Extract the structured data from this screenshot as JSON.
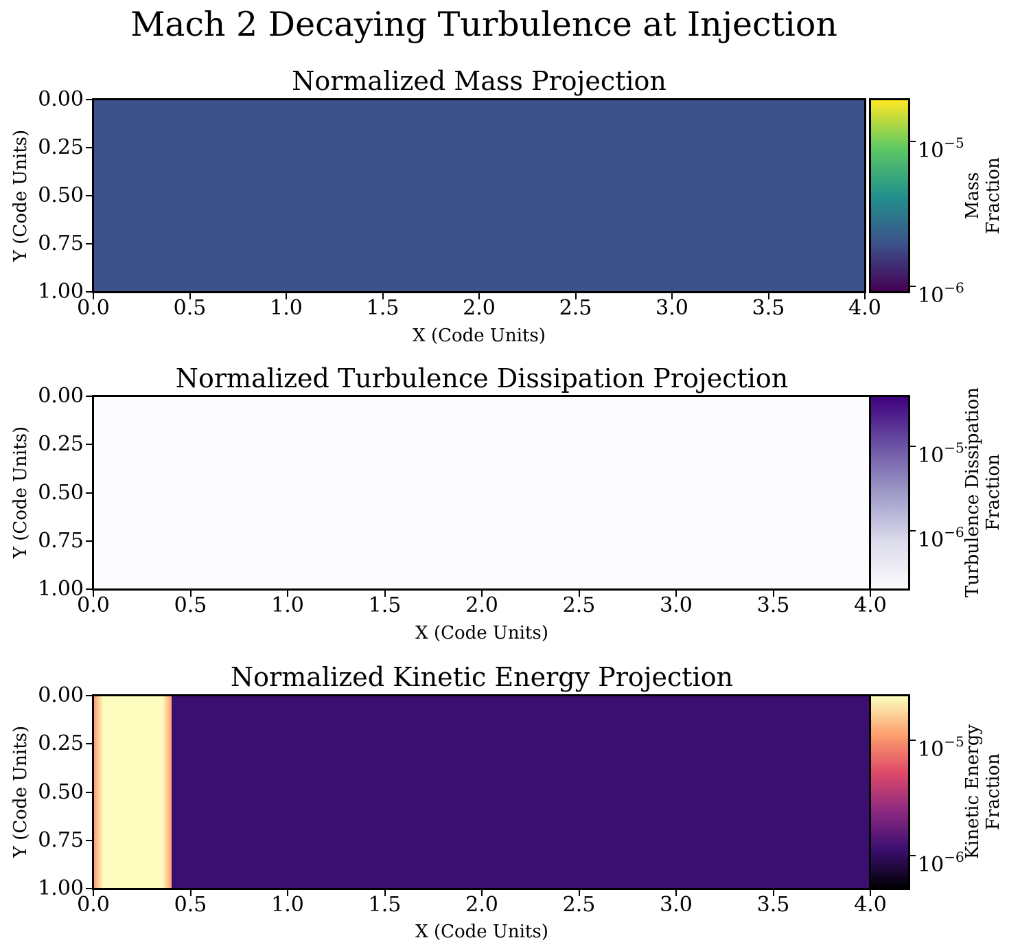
{
  "suptitle": "Mach 2 Decaying Turbulence at Injection",
  "chart_data": [
    {
      "type": "heatmap",
      "title": "Normalized Mass Projection",
      "xlabel": "X (Code Units)",
      "ylabel": "Y (Code Units)",
      "xlim": [
        0.0,
        4.0
      ],
      "ylim": [
        1.0,
        0.0
      ],
      "xticks": [
        "0.0",
        "0.5",
        "1.0",
        "1.5",
        "2.0",
        "2.5",
        "3.0",
        "3.5",
        "4.0"
      ],
      "yticks": [
        "0.00",
        "0.25",
        "0.50",
        "0.75",
        "1.00"
      ],
      "colormap": "viridis",
      "colors": [
        "#440154",
        "#3b528b",
        "#21918c",
        "#5ec962",
        "#fde725"
      ],
      "colorbar": {
        "label": [
          "Mass",
          "Fraction"
        ],
        "scale": "log",
        "range": [
          9e-07,
          2e-05
        ],
        "ticks": [
          {
            "base": "10",
            "exp": "−5",
            "value": 1e-05
          },
          {
            "base": "10",
            "exp": "−6",
            "value": 1e-06
          }
        ]
      }
    },
    {
      "type": "heatmap",
      "title": "Normalized Turbulence Dissipation Projection",
      "xlabel": "X (Code Units)",
      "ylabel": "Y (Code Units)",
      "xlim": [
        0.0,
        4.0
      ],
      "ylim": [
        1.0,
        0.0
      ],
      "xticks": [
        "0.0",
        "0.5",
        "1.0",
        "1.5",
        "2.0",
        "2.5",
        "3.0",
        "3.5",
        "4.0"
      ],
      "yticks": [
        "0.00",
        "0.25",
        "0.50",
        "0.75",
        "1.00"
      ],
      "colormap": "Purples",
      "colors": [
        "#fcfbfd",
        "#dadaeb",
        "#9e9ac8",
        "#6a51a3",
        "#3f007d"
      ],
      "colorbar": {
        "label": [
          "Turbulence Dissipation",
          "Fraction"
        ],
        "scale": "log",
        "range": [
          2e-07,
          4e-05
        ],
        "ticks": [
          {
            "base": "10",
            "exp": "−5",
            "value": 1e-05
          },
          {
            "base": "10",
            "exp": "−6",
            "value": 1e-06
          }
        ]
      }
    },
    {
      "type": "heatmap",
      "title": "Normalized Kinetic Energy Projection",
      "xlabel": "X (Code Units)",
      "ylabel": "Y (Code Units)",
      "xlim": [
        0.0,
        4.0
      ],
      "ylim": [
        1.0,
        0.0
      ],
      "xticks": [
        "0.0",
        "0.5",
        "1.0",
        "1.5",
        "2.0",
        "2.5",
        "3.0",
        "3.5",
        "4.0"
      ],
      "yticks": [
        "0.00",
        "0.25",
        "0.50",
        "0.75",
        "1.00"
      ],
      "colormap": "magma",
      "colors": [
        "#000004",
        "#3b0f70",
        "#8c2981",
        "#de4968",
        "#fe9f6d",
        "#fcfdbf"
      ],
      "colorbar": {
        "label": [
          "Kinetic Energy",
          "Fraction"
        ],
        "scale": "log",
        "range": [
          5e-07,
          2.5e-05
        ],
        "ticks": [
          {
            "base": "10",
            "exp": "−5",
            "value": 1e-05
          },
          {
            "base": "10",
            "exp": "−6",
            "value": 1e-06
          }
        ]
      },
      "feature": "bright injection band at X 0.0-0.4"
    }
  ]
}
